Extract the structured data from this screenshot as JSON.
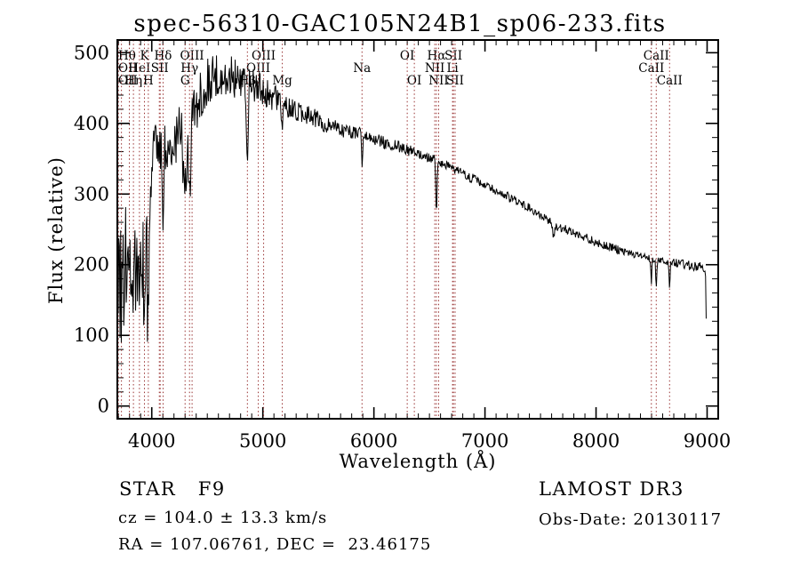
{
  "annotations": {
    "object_class": "STAR   F9",
    "survey": "LAMOST DR3",
    "cz": "cz = 104.0 ± 13.3 km/s",
    "obs_date": "Obs-Date: 20130117",
    "ra_dec": "RA = 107.06761, DEC =  23.46175"
  },
  "chart_data": {
    "type": "line",
    "title": "spec-56310-GAC105N24B1_sp06-233.fits",
    "xlabel": "Wavelength (Å)",
    "ylabel": "Flux (relative)",
    "xlim": [
      3690,
      9100
    ],
    "ylim": [
      -18,
      518
    ],
    "x_ticks": [
      4000,
      5000,
      6000,
      7000,
      8000,
      9000
    ],
    "x_minor_step": 100,
    "y_ticks": [
      0,
      100,
      200,
      300,
      400,
      500
    ],
    "y_minor_step": 20,
    "grid": false,
    "legend": "none",
    "line_color": "#000000",
    "marker_color": "#993333",
    "spectral_lines": [
      {
        "label": "Hθ",
        "row": 1,
        "wavelengths": [
          3798
        ]
      },
      {
        "label": "K",
        "row": 1,
        "wavelengths": [
          3934
        ]
      },
      {
        "label": "Hδ",
        "row": 1,
        "wavelengths": [
          4102
        ]
      },
      {
        "label": "OIII",
        "row": 1,
        "wavelengths": [
          4363
        ]
      },
      {
        "label": "OIII",
        "row": 1,
        "wavelengths": [
          5007
        ]
      },
      {
        "label": "OI",
        "row": 1,
        "wavelengths": [
          6300
        ]
      },
      {
        "label": "Hα",
        "row": 1,
        "wavelengths": [
          6563
        ]
      },
      {
        "label": "SII",
        "row": 1,
        "wavelengths": [
          6716
        ]
      },
      {
        "label": "CaII",
        "row": 1,
        "wavelengths": [
          8542
        ]
      },
      {
        "label": "OII",
        "row": 2,
        "wavelengths": [
          3727
        ]
      },
      {
        "label": "HeI",
        "row": 2,
        "wavelengths": [
          3889
        ]
      },
      {
        "label": "SII",
        "row": 2,
        "wavelengths": [
          4068,
          4076
        ]
      },
      {
        "label": "Hγ",
        "row": 2,
        "wavelengths": [
          4340
        ]
      },
      {
        "label": "OIII",
        "row": 2,
        "wavelengths": [
          4959
        ]
      },
      {
        "label": "Na",
        "row": 2,
        "wavelengths": [
          5893
        ]
      },
      {
        "label": "NII",
        "row": 2,
        "wavelengths": [
          6548
        ]
      },
      {
        "label": "Li",
        "row": 2,
        "wavelengths": [
          6708
        ]
      },
      {
        "label": "CaII",
        "row": 2,
        "wavelengths": [
          8498
        ]
      },
      {
        "label": "OII",
        "row": 3,
        "wavelengths": [
          3700
        ]
      },
      {
        "label": "Hη",
        "row": 3,
        "wavelengths": [
          3835
        ]
      },
      {
        "label": "H",
        "row": 3,
        "wavelengths": [
          3969
        ]
      },
      {
        "label": "G",
        "row": 3,
        "wavelengths": [
          4300
        ]
      },
      {
        "label": "Hβ",
        "row": 3,
        "wavelengths": [
          4861
        ]
      },
      {
        "label": "Mg",
        "row": 3,
        "wavelengths": [
          5175
        ]
      },
      {
        "label": "OI",
        "row": 3,
        "wavelengths": [
          6364
        ]
      },
      {
        "label": "NII",
        "row": 3,
        "wavelengths": [
          6583
        ]
      },
      {
        "label": "SII",
        "row": 3,
        "wavelengths": [
          6731
        ]
      },
      {
        "label": "CaII",
        "row": 3,
        "wavelengths": [
          8662
        ]
      }
    ],
    "continuum": [
      [
        3692,
        225,
        95
      ],
      [
        3710,
        180,
        100
      ],
      [
        3730,
        180,
        100
      ],
      [
        3750,
        185,
        95
      ],
      [
        3770,
        188,
        95
      ],
      [
        3790,
        190,
        92
      ],
      [
        3810,
        195,
        92
      ],
      [
        3830,
        200,
        90
      ],
      [
        3850,
        208,
        88
      ],
      [
        3870,
        214,
        86
      ],
      [
        3890,
        220,
        84
      ],
      [
        3910,
        228,
        80
      ],
      [
        3930,
        232,
        72
      ],
      [
        3950,
        245,
        64
      ],
      [
        3970,
        258,
        58
      ],
      [
        3985,
        290,
        52
      ],
      [
        4000,
        330,
        48
      ],
      [
        4020,
        352,
        44
      ],
      [
        4050,
        362,
        42
      ],
      [
        4080,
        362,
        40
      ],
      [
        4110,
        365,
        40
      ],
      [
        4150,
        372,
        38
      ],
      [
        4200,
        378,
        38
      ],
      [
        4250,
        388,
        40
      ],
      [
        4290,
        360,
        42
      ],
      [
        4330,
        368,
        42
      ],
      [
        4360,
        400,
        40
      ],
      [
        4400,
        424,
        38
      ],
      [
        4450,
        446,
        36
      ],
      [
        4500,
        458,
        34
      ],
      [
        4550,
        464,
        33
      ],
      [
        4600,
        468,
        32
      ],
      [
        4650,
        466,
        32
      ],
      [
        4700,
        469,
        31
      ],
      [
        4750,
        463,
        30
      ],
      [
        4800,
        458,
        28
      ],
      [
        4850,
        448,
        26
      ],
      [
        4900,
        452,
        26
      ],
      [
        4950,
        450,
        24
      ],
      [
        5000,
        446,
        22
      ],
      [
        5050,
        441,
        21
      ],
      [
        5100,
        437,
        20
      ],
      [
        5150,
        430,
        18
      ],
      [
        5200,
        426,
        17
      ],
      [
        5250,
        422,
        16
      ],
      [
        5300,
        418,
        15
      ],
      [
        5350,
        414,
        15
      ],
      [
        5400,
        411,
        14
      ],
      [
        5450,
        408,
        14
      ],
      [
        5500,
        405,
        13
      ],
      [
        5550,
        401,
        13
      ],
      [
        5600,
        398,
        12
      ],
      [
        5650,
        395,
        12
      ],
      [
        5700,
        392,
        11
      ],
      [
        5750,
        390,
        11
      ],
      [
        5800,
        388,
        10
      ],
      [
        5850,
        386,
        10
      ],
      [
        5900,
        383,
        10
      ],
      [
        5950,
        381,
        9
      ],
      [
        6000,
        378,
        9
      ],
      [
        6050,
        376,
        9
      ],
      [
        6100,
        373,
        9
      ],
      [
        6150,
        371,
        8
      ],
      [
        6200,
        369,
        8
      ],
      [
        6250,
        366,
        8
      ],
      [
        6300,
        362,
        8
      ],
      [
        6350,
        360,
        8
      ],
      [
        6400,
        357,
        8
      ],
      [
        6450,
        354,
        8
      ],
      [
        6500,
        351,
        7
      ],
      [
        6550,
        348,
        7
      ],
      [
        6600,
        345,
        7
      ],
      [
        6650,
        341,
        7
      ],
      [
        6700,
        337,
        7
      ],
      [
        6750,
        334,
        7
      ],
      [
        6800,
        330,
        7
      ],
      [
        6850,
        326,
        7
      ],
      [
        6900,
        321,
        7
      ],
      [
        6950,
        317,
        6
      ],
      [
        7000,
        313,
        6
      ],
      [
        7050,
        309,
        6
      ],
      [
        7100,
        305,
        6
      ],
      [
        7150,
        301,
        6
      ],
      [
        7200,
        297,
        7
      ],
      [
        7250,
        293,
        7
      ],
      [
        7300,
        289,
        6
      ],
      [
        7350,
        285,
        6
      ],
      [
        7400,
        280,
        6
      ],
      [
        7450,
        275,
        6
      ],
      [
        7500,
        270,
        6
      ],
      [
        7550,
        266,
        6
      ],
      [
        7600,
        259,
        6
      ],
      [
        7650,
        254,
        6
      ],
      [
        7700,
        251,
        6
      ],
      [
        7750,
        249,
        6
      ],
      [
        7800,
        246,
        6
      ],
      [
        7850,
        242,
        6
      ],
      [
        7900,
        239,
        6
      ],
      [
        7950,
        236,
        6
      ],
      [
        8000,
        232,
        6
      ],
      [
        8050,
        229,
        6
      ],
      [
        8100,
        226,
        6
      ],
      [
        8150,
        224,
        6
      ],
      [
        8200,
        221,
        6
      ],
      [
        8250,
        219,
        5
      ],
      [
        8300,
        216,
        5
      ],
      [
        8350,
        214,
        5
      ],
      [
        8400,
        212,
        5
      ],
      [
        8450,
        210,
        5
      ],
      [
        8500,
        208,
        5
      ],
      [
        8550,
        207,
        5
      ],
      [
        8600,
        205,
        5
      ],
      [
        8650,
        204,
        5
      ],
      [
        8700,
        203,
        6
      ],
      [
        8750,
        202,
        6
      ],
      [
        8800,
        201,
        7
      ],
      [
        8850,
        199,
        7
      ],
      [
        8900,
        198,
        7
      ],
      [
        8950,
        196,
        7
      ],
      [
        8985,
        194,
        6
      ],
      [
        8992,
        120,
        4
      ],
      [
        8997,
        4,
        2
      ]
    ],
    "absorption_features": [
      {
        "center": 3798,
        "half_width": 14,
        "depth": 55
      },
      {
        "center": 3835,
        "half_width": 14,
        "depth": 60
      },
      {
        "center": 3889,
        "half_width": 14,
        "depth": 70
      },
      {
        "center": 3934,
        "half_width": 13,
        "depth": 150
      },
      {
        "center": 3969,
        "half_width": 13,
        "depth": 155
      },
      {
        "center": 4102,
        "half_width": 15,
        "depth": 110
      },
      {
        "center": 4300,
        "half_width": 28,
        "depth": 55
      },
      {
        "center": 4340,
        "half_width": 14,
        "depth": 120
      },
      {
        "center": 4861,
        "half_width": 14,
        "depth": 120
      },
      {
        "center": 5175,
        "half_width": 22,
        "depth": 30
      },
      {
        "center": 5893,
        "half_width": 10,
        "depth": 50
      },
      {
        "center": 6563,
        "half_width": 11,
        "depth": 90
      },
      {
        "center": 6870,
        "half_width": 15,
        "depth": 10
      },
      {
        "center": 7615,
        "half_width": 25,
        "depth": 14
      },
      {
        "center": 8498,
        "half_width": 9,
        "depth": 42
      },
      {
        "center": 8542,
        "half_width": 9,
        "depth": 48
      },
      {
        "center": 8662,
        "half_width": 9,
        "depth": 42
      }
    ],
    "deep_spike_noise": {
      "below_wavelength": 3995,
      "amplitude": 170
    }
  }
}
